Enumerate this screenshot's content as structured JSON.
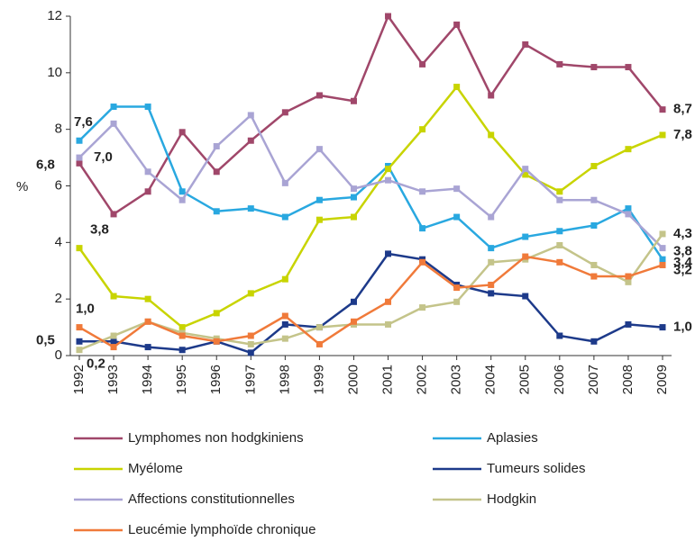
{
  "chart_data": {
    "type": "line",
    "y_label": "%",
    "categories": [
      "1992",
      "1993",
      "1994",
      "1995",
      "1996",
      "1997",
      "1998",
      "1999",
      "2000",
      "2001",
      "2002",
      "2003",
      "2004",
      "2005",
      "2006",
      "2007",
      "2008",
      "2009"
    ],
    "ylim": [
      0,
      12
    ],
    "yticks": [
      0,
      2,
      4,
      6,
      8,
      10,
      12
    ],
    "series": [
      {
        "name": "Lymphomes non hodgkiniens",
        "color": "#a0476a",
        "values": [
          6.8,
          5.0,
          5.8,
          7.9,
          6.5,
          7.6,
          8.6,
          9.2,
          9.0,
          12.0,
          10.3,
          11.7,
          9.2,
          11.0,
          10.3,
          10.2,
          10.2,
          8.7
        ],
        "value_labels": [
          "6,8",
          null,
          null,
          null,
          null,
          null,
          null,
          null,
          null,
          null,
          null,
          null,
          null,
          null,
          null,
          null,
          null,
          "8,7"
        ]
      },
      {
        "name": "Aplasies",
        "color": "#29a8e0",
        "values": [
          7.6,
          8.8,
          8.8,
          5.8,
          5.1,
          5.2,
          4.9,
          5.5,
          5.6,
          6.7,
          4.5,
          4.9,
          3.8,
          4.2,
          4.4,
          4.6,
          5.2,
          3.4
        ],
        "value_labels": [
          "7,6",
          null,
          null,
          null,
          null,
          null,
          null,
          null,
          null,
          null,
          null,
          null,
          null,
          null,
          null,
          null,
          null,
          "3,4"
        ]
      },
      {
        "name": "Myélome",
        "color": "#c8d400",
        "values": [
          3.8,
          2.1,
          2.0,
          1.0,
          1.5,
          2.2,
          2.7,
          4.8,
          4.9,
          6.6,
          8.0,
          9.5,
          7.8,
          6.4,
          5.8,
          6.7,
          7.3,
          7.8
        ],
        "value_labels": [
          "3,8",
          null,
          null,
          null,
          null,
          null,
          null,
          null,
          null,
          null,
          null,
          null,
          null,
          null,
          null,
          null,
          null,
          "7,8"
        ]
      },
      {
        "name": "Tumeurs solides",
        "color": "#1d3a8a",
        "values": [
          0.5,
          0.5,
          0.3,
          0.2,
          0.5,
          0.1,
          1.1,
          1.0,
          1.9,
          3.6,
          3.4,
          2.5,
          2.2,
          2.1,
          0.7,
          0.5,
          1.1,
          1.0
        ],
        "value_labels": [
          "0,5",
          null,
          null,
          null,
          null,
          null,
          null,
          null,
          null,
          null,
          null,
          null,
          null,
          null,
          null,
          null,
          null,
          "1,0"
        ]
      },
      {
        "name": "Affections constitutionnelles",
        "color": "#a9a4d4",
        "values": [
          7.0,
          8.2,
          6.5,
          5.5,
          7.4,
          8.5,
          6.1,
          7.3,
          5.9,
          6.2,
          5.8,
          5.9,
          4.9,
          6.6,
          5.5,
          5.5,
          5.0,
          3.8
        ],
        "value_labels": [
          "7,0",
          null,
          null,
          null,
          null,
          null,
          null,
          null,
          null,
          null,
          null,
          null,
          null,
          null,
          null,
          null,
          null,
          "3,8"
        ]
      },
      {
        "name": "Hodgkin",
        "color": "#c4c48a",
        "values": [
          0.2,
          0.7,
          1.2,
          0.8,
          0.6,
          0.4,
          0.6,
          1.0,
          1.1,
          1.1,
          1.7,
          1.9,
          3.3,
          3.4,
          3.9,
          3.2,
          2.6,
          4.3
        ],
        "value_labels": [
          "0,2",
          null,
          null,
          null,
          null,
          null,
          null,
          null,
          null,
          null,
          null,
          null,
          null,
          null,
          null,
          null,
          null,
          "4,3"
        ]
      },
      {
        "name": "Leucémie lymphoïde chronique",
        "color": "#f07a3a",
        "values": [
          1.0,
          0.3,
          1.2,
          0.7,
          0.5,
          0.7,
          1.4,
          0.4,
          1.2,
          1.9,
          3.3,
          2.4,
          2.5,
          3.5,
          3.3,
          2.8,
          2.8,
          3.2
        ],
        "value_labels": [
          "1,0",
          null,
          null,
          null,
          null,
          null,
          null,
          null,
          null,
          null,
          null,
          null,
          null,
          null,
          null,
          null,
          null,
          "3,2"
        ]
      }
    ]
  }
}
